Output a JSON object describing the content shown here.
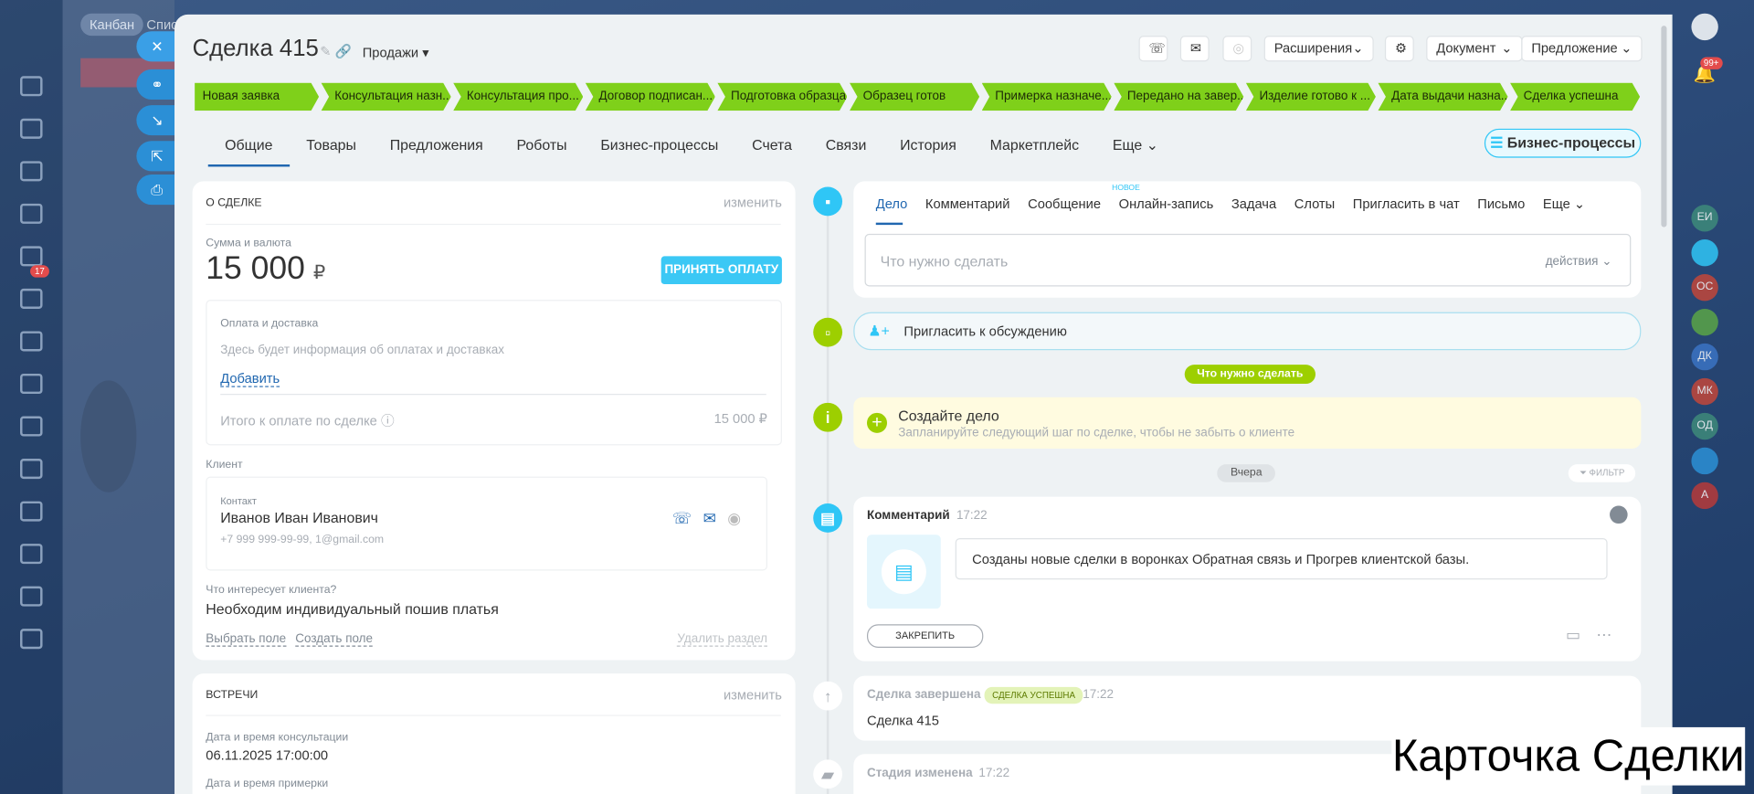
{
  "background": {
    "tabs": [
      "Канбан",
      "Спис"
    ],
    "badge": "17"
  },
  "header": {
    "title": "Сделка 415",
    "pipeline": "Продажи",
    "buttons": [
      "Расширения",
      "Документ",
      "Предложение"
    ]
  },
  "stages": [
    "Новая заявка",
    "Консультация назн...",
    "Консультация про...",
    "Договор подписан...",
    "Подготовка образца",
    "Образец готов",
    "Примерка назначе...",
    "Передано на завер...",
    "Изделие готово к ...",
    "Дата выдачи назна...",
    "Сделка успешна"
  ],
  "tabs": {
    "items": [
      "Общие",
      "Товары",
      "Предложения",
      "Роботы",
      "Бизнес-процессы",
      "Счета",
      "Связи",
      "История",
      "Маркетплейс",
      "Еще"
    ],
    "bp_button": "Бизнес-процессы"
  },
  "deal": {
    "title": "О СДЕЛКЕ",
    "edit": "изменить",
    "amount_label": "Сумма и валюта",
    "amount": "15 000",
    "currency": "₽",
    "pay_button": "ПРИНЯТЬ ОПЛАТУ",
    "payment_title": "Оплата и доставка",
    "payment_hint": "Здесь будет информация об оплатах и доставках",
    "add": "Добавить",
    "total_label": "Итого к оплате по сделке",
    "total": "15 000 ₽",
    "client_label": "Клиент",
    "contact_label": "Контакт",
    "contact_name": "Иванов Иван Иванович",
    "contact_info": "+7 999 999-99-99, 1@gmail.com",
    "interest_label": "Что интересует клиента?",
    "interest": "Необходим индивидуальный пошив платья",
    "select_field": "Выбрать поле",
    "create_field": "Создать поле",
    "delete_section": "Удалить раздел"
  },
  "meetings": {
    "title": "ВСТРЕЧИ",
    "edit": "изменить",
    "consult_label": "Дата и время консультации",
    "consult": "06.11.2025 17:00:00",
    "fitting_label": "Дата и время примерки"
  },
  "timeline": {
    "activity_tabs": [
      "Дело",
      "Комментарий",
      "Сообщение",
      "Онлайн-запись",
      "Задача",
      "Слоты",
      "Пригласить в чат",
      "Письмо",
      "Еще"
    ],
    "new_badge": "новое",
    "placeholder": "Что нужно сделать",
    "actions": "действия",
    "invite": "Пригласить к обсуждению",
    "todo_pill": "Что нужно сделать",
    "create_title": "Создайте дело",
    "create_hint": "Запланируйте следующий шаг по сделке, чтобы не забыть о клиенте",
    "day": "Вчера",
    "filter": "ФИЛЬТР",
    "comment": {
      "title": "Комментарий",
      "time": "17:22",
      "text": "Созданы новые сделки в воронках Обратная связь и Прогрев клиентской базы.",
      "pin": "ЗАКРЕПИТЬ"
    },
    "closed": {
      "title": "Сделка завершена",
      "badge": "СДЕЛКА УСПЕШНА",
      "time": "17:22",
      "text": "Сделка 415"
    },
    "stage_changed": {
      "title": "Стадия изменена",
      "time": "17:22"
    }
  },
  "right_bar": {
    "badge": "99+",
    "avatars": [
      "ЕИ",
      "",
      "ОС",
      "",
      "ДК",
      "МК",
      "ОД",
      "",
      "А"
    ]
  },
  "caption": "Карточка Сделки"
}
